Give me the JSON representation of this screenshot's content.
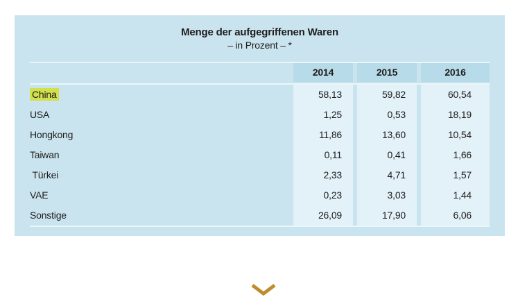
{
  "table": {
    "title": "Menge der aufgegriffenen Waren",
    "subtitle": "– in Prozent – *",
    "columns": [
      "2014",
      "2015",
      "2016"
    ],
    "rows": [
      {
        "label": "China",
        "highlighted": true,
        "values": [
          "58,13",
          "59,82",
          "60,54"
        ]
      },
      {
        "label": "USA",
        "highlighted": false,
        "values": [
          "1,25",
          "0,53",
          "18,19"
        ]
      },
      {
        "label": "Hongkong",
        "highlighted": false,
        "values": [
          "11,86",
          "13,60",
          "10,54"
        ]
      },
      {
        "label": "Taiwan",
        "highlighted": false,
        "values": [
          "0,11",
          "0,41",
          "1,66"
        ]
      },
      {
        "label": " Türkei",
        "highlighted": false,
        "values": [
          "2,33",
          "4,71",
          "1,57"
        ]
      },
      {
        "label": "VAE",
        "highlighted": false,
        "values": [
          "0,23",
          "3,03",
          "1,44"
        ]
      },
      {
        "label": "Sonstige",
        "highlighted": false,
        "values": [
          "26,09",
          "17,90",
          "6,06"
        ]
      }
    ]
  },
  "chart_data": {
    "type": "table",
    "title": "Menge der aufgegriffenen Waren",
    "subtitle": "– in Prozent – *",
    "categories": [
      "China",
      "USA",
      "Hongkong",
      "Taiwan",
      "Türkei",
      "VAE",
      "Sonstige"
    ],
    "series": [
      {
        "name": "2014",
        "values": [
          58.13,
          1.25,
          11.86,
          0.11,
          2.33,
          0.23,
          26.09
        ]
      },
      {
        "name": "2015",
        "values": [
          59.82,
          0.53,
          13.6,
          0.41,
          4.71,
          3.03,
          17.9
        ]
      },
      {
        "name": "2016",
        "values": [
          60.54,
          18.19,
          10.54,
          1.66,
          1.57,
          1.44,
          6.06
        ]
      }
    ],
    "unit": "percent",
    "highlighted_category": "China"
  },
  "icons": {
    "expand": "chevron-down"
  },
  "colors": {
    "panel_bg": "#cae4ef",
    "header_cell_bg": "#b7dbe9",
    "data_cell_bg": "#e3f1f8",
    "separator": "#e9f6fa",
    "text": "#1d1d1b",
    "highlight": "#d2e04b",
    "chevron": "#bf8c2e"
  }
}
